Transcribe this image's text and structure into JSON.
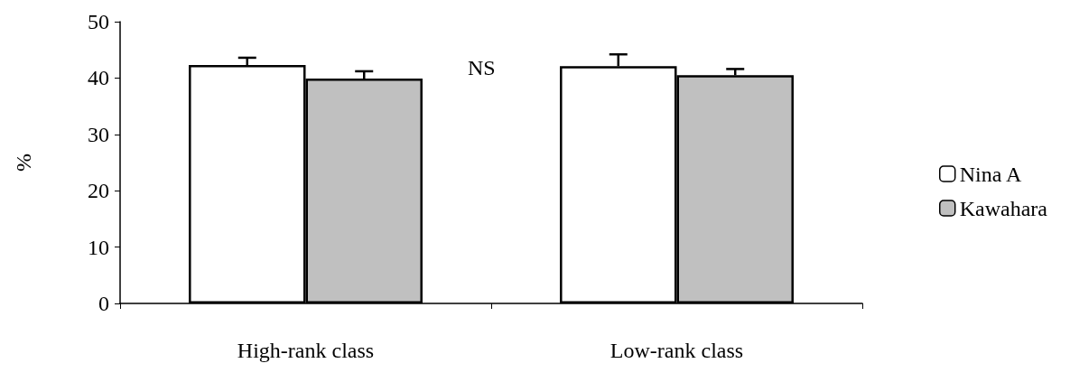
{
  "chart_data": {
    "type": "bar",
    "ylabel": "%",
    "categories": [
      "High-rank class",
      "Low-rank class"
    ],
    "series": [
      {
        "name": "Nina A",
        "color": "#ffffff",
        "values": [
          42.3,
          42.1
        ],
        "errors": [
          1.3,
          2.1
        ]
      },
      {
        "name": "Kawahara",
        "color": "#c0c0c0",
        "values": [
          39.9,
          40.5
        ],
        "errors": [
          1.3,
          1.1
        ]
      }
    ],
    "ylim": [
      0,
      50
    ],
    "yticks": [
      0,
      10,
      20,
      30,
      40,
      50
    ],
    "grid": false,
    "legend": "right",
    "annotations": [
      "NS"
    ]
  }
}
